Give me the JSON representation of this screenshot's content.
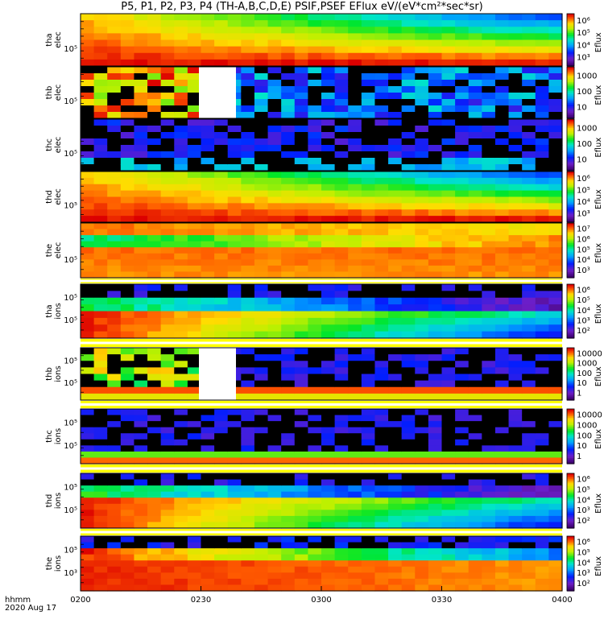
{
  "chart_data": {
    "type": "heatmap",
    "title": "P5, P1, P2, P3, P4 (TH-A,B,C,D,E) PSIF,PSEF EFlux eV/(eV*cm²*sec*sr)",
    "x_ticks": [
      "0200",
      "0230",
      "0300",
      "0330",
      "0400"
    ],
    "x_range": [
      "0200",
      "0400"
    ],
    "corner_label": [
      "hhmm",
      "2020 Aug 17"
    ],
    "panels": [
      {
        "probe": "tha",
        "species": "elec",
        "ytick": "10⁵",
        "colorbar": {
          "label": "Eflux",
          "ticks": [
            "10⁶",
            "10⁵",
            "10⁴",
            "10³"
          ]
        }
      },
      {
        "probe": "thb",
        "species": "elec",
        "ytick": "10⁵",
        "colorbar": {
          "label": "Eflux",
          "ticks": [
            "1000",
            "100",
            "10"
          ]
        }
      },
      {
        "probe": "thc",
        "species": "elec",
        "ytick": "10⁵",
        "colorbar": {
          "label": "Eflux",
          "ticks": [
            "1000",
            "100",
            "10"
          ]
        }
      },
      {
        "probe": "thd",
        "species": "elec",
        "ytick": "10⁵",
        "colorbar": {
          "label": "Eflux",
          "ticks": [
            "10⁶",
            "10⁵",
            "10⁴",
            "10³"
          ]
        }
      },
      {
        "probe": "the",
        "species": "elec",
        "ytick": "10⁵",
        "colorbar": {
          "label": "Eflux",
          "ticks": [
            "10⁷",
            "10⁶",
            "10⁵",
            "10⁴",
            "10³"
          ]
        }
      },
      {
        "probe": "tha",
        "species": "ions",
        "ytick": "10⁵",
        "ytick_upper": "10⁵",
        "colorbar": {
          "label": "Eflux",
          "ticks": [
            "10⁶",
            "10⁵",
            "10⁴",
            "10³",
            "10²"
          ]
        }
      },
      {
        "probe": "thb",
        "species": "ions",
        "ytick": "10⁵",
        "ytick_upper": "10⁵",
        "colorbar": {
          "label": "Eflux",
          "ticks": [
            "10000",
            "1000",
            "100",
            "10",
            "1"
          ]
        }
      },
      {
        "probe": "thc",
        "species": "ions",
        "ytick": "10⁵",
        "ytick_upper": "10⁵",
        "colorbar": {
          "label": "Eflux",
          "ticks": [
            "10000",
            "1000",
            "100",
            "10",
            "1"
          ]
        }
      },
      {
        "probe": "thd",
        "species": "ions",
        "ytick": "10⁵",
        "ytick_upper": "10⁵",
        "colorbar": {
          "label": "Eflux",
          "ticks": [
            "10⁶",
            "10⁵",
            "10⁴",
            "10³",
            "10²"
          ]
        }
      },
      {
        "probe": "the",
        "species": "ions",
        "ytick": "10³",
        "ytick_upper": "10⁵",
        "colorbar": {
          "label": "Eflux",
          "ticks": [
            "10⁶",
            "10⁵",
            "10⁴",
            "10³",
            "10²"
          ]
        }
      }
    ]
  }
}
